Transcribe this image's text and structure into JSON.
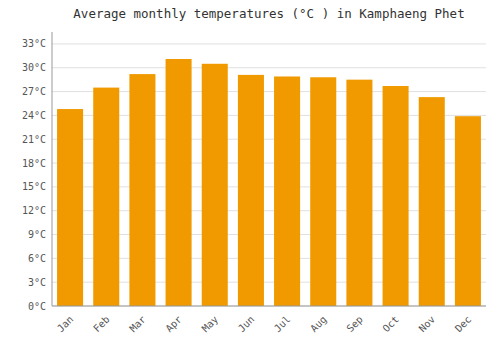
{
  "chart_data": {
    "type": "bar",
    "title": "Average monthly temperatures (°C ) in Kamphaeng Phet",
    "categories": [
      "Jan",
      "Feb",
      "Mar",
      "Apr",
      "May",
      "Jun",
      "Jul",
      "Aug",
      "Sep",
      "Oct",
      "Nov",
      "Dec"
    ],
    "values": [
      24.8,
      27.5,
      29.2,
      31.1,
      30.5,
      29.1,
      28.9,
      28.8,
      28.5,
      27.7,
      26.3,
      23.9
    ],
    "color": "#F09A00",
    "ylim": [
      0,
      34.5
    ],
    "yticks": [
      {
        "value": 0,
        "label": "0°C"
      },
      {
        "value": 3,
        "label": "3°C"
      },
      {
        "value": 6,
        "label": "6°C"
      },
      {
        "value": 9,
        "label": "9°C"
      },
      {
        "value": 12,
        "label": "12°C"
      },
      {
        "value": 15,
        "label": "15°C"
      },
      {
        "value": 18,
        "label": "18°C"
      },
      {
        "value": 21,
        "label": "21°C"
      },
      {
        "value": 24,
        "label": "24°C"
      },
      {
        "value": 27,
        "label": "27°C"
      },
      {
        "value": 30,
        "label": "30°C"
      },
      {
        "value": 33,
        "label": "33°C"
      }
    ],
    "grid": true
  }
}
